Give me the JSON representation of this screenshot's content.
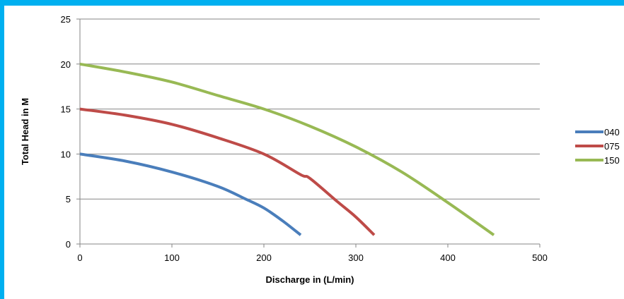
{
  "chart_data": {
    "type": "line",
    "title": "",
    "xlabel": "Discharge in (L/min)",
    "ylabel": "Total Head in M",
    "xlim": [
      0,
      500
    ],
    "ylim": [
      0,
      25
    ],
    "x_ticks": [
      0,
      100,
      200,
      300,
      400,
      500
    ],
    "y_ticks": [
      0,
      5,
      10,
      15,
      20,
      25
    ],
    "grid": "horizontal",
    "legend_position": "right",
    "series": [
      {
        "name": "040",
        "color": "#4a7ebb",
        "points": [
          [
            0,
            10
          ],
          [
            50,
            9.2
          ],
          [
            100,
            8
          ],
          [
            150,
            6.4
          ],
          [
            180,
            5
          ],
          [
            200,
            4
          ],
          [
            220,
            2.6
          ],
          [
            240,
            1
          ]
        ]
      },
      {
        "name": "075",
        "color": "#be4b48",
        "points": [
          [
            0,
            15
          ],
          [
            50,
            14.3
          ],
          [
            100,
            13.3
          ],
          [
            150,
            11.8
          ],
          [
            200,
            10
          ],
          [
            240,
            7.7
          ],
          [
            250,
            7.3
          ],
          [
            280,
            4.7
          ],
          [
            300,
            3
          ],
          [
            320,
            1
          ]
        ]
      },
      {
        "name": "150",
        "color": "#98b954",
        "points": [
          [
            0,
            20
          ],
          [
            50,
            19.1
          ],
          [
            100,
            18
          ],
          [
            150,
            16.5
          ],
          [
            200,
            15
          ],
          [
            250,
            13.1
          ],
          [
            300,
            10.8
          ],
          [
            350,
            8
          ],
          [
            400,
            4.6
          ],
          [
            450,
            1
          ]
        ]
      }
    ]
  }
}
